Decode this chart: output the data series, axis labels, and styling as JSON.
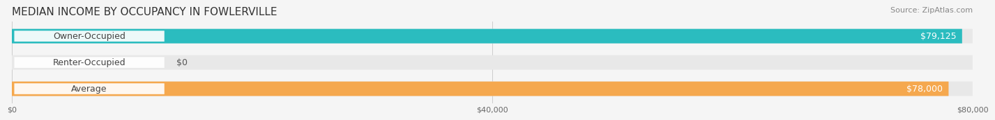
{
  "title": "MEDIAN INCOME BY OCCUPANCY IN FOWLERVILLE",
  "source": "Source: ZipAtlas.com",
  "categories": [
    "Owner-Occupied",
    "Renter-Occupied",
    "Average"
  ],
  "values": [
    79125,
    0,
    78000
  ],
  "bar_colors": [
    "#2bbcbf",
    "#c9a8d4",
    "#f5a84e"
  ],
  "label_colors": [
    "#2bbcbf",
    "#c9a8d4",
    "#f5a84e"
  ],
  "value_labels": [
    "$79,125",
    "$0",
    "$78,000"
  ],
  "xlim": [
    0,
    80000
  ],
  "xticks": [
    0,
    40000,
    80000
  ],
  "xtick_labels": [
    "$0",
    "$40,000",
    "$80,000"
  ],
  "background_color": "#f5f5f5",
  "bar_background_color": "#e8e8e8",
  "title_fontsize": 11,
  "source_fontsize": 8,
  "label_fontsize": 9,
  "value_fontsize": 9
}
